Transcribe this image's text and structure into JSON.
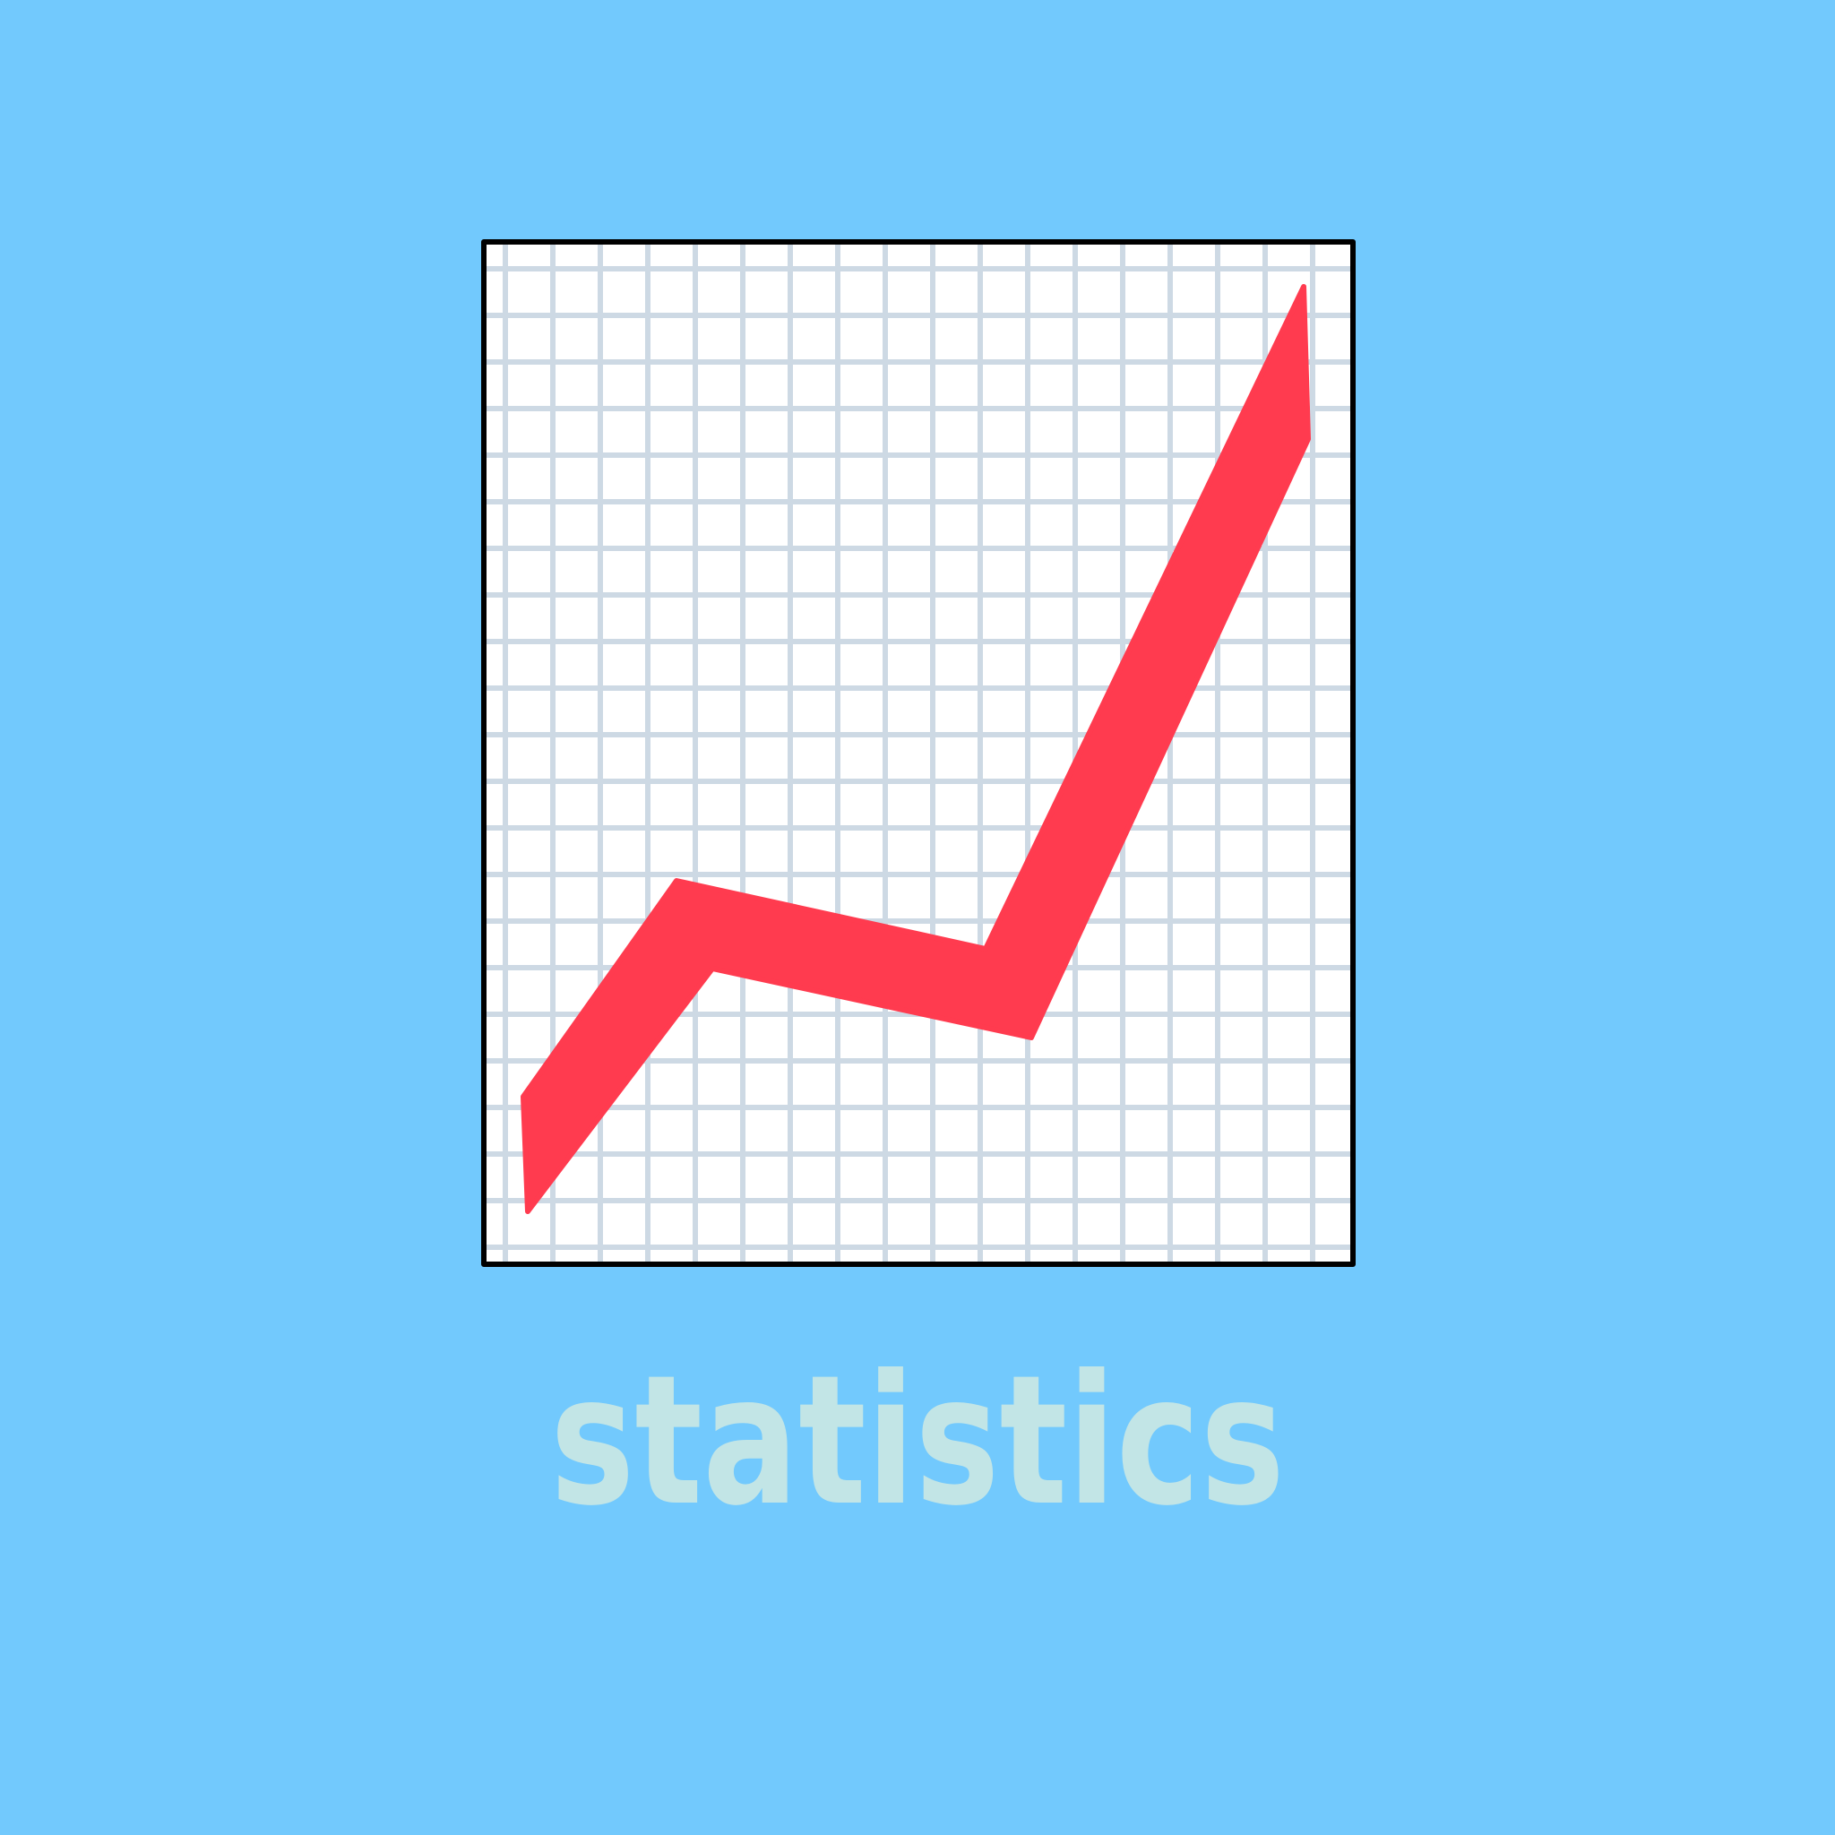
{
  "caption": "statistics"
}
